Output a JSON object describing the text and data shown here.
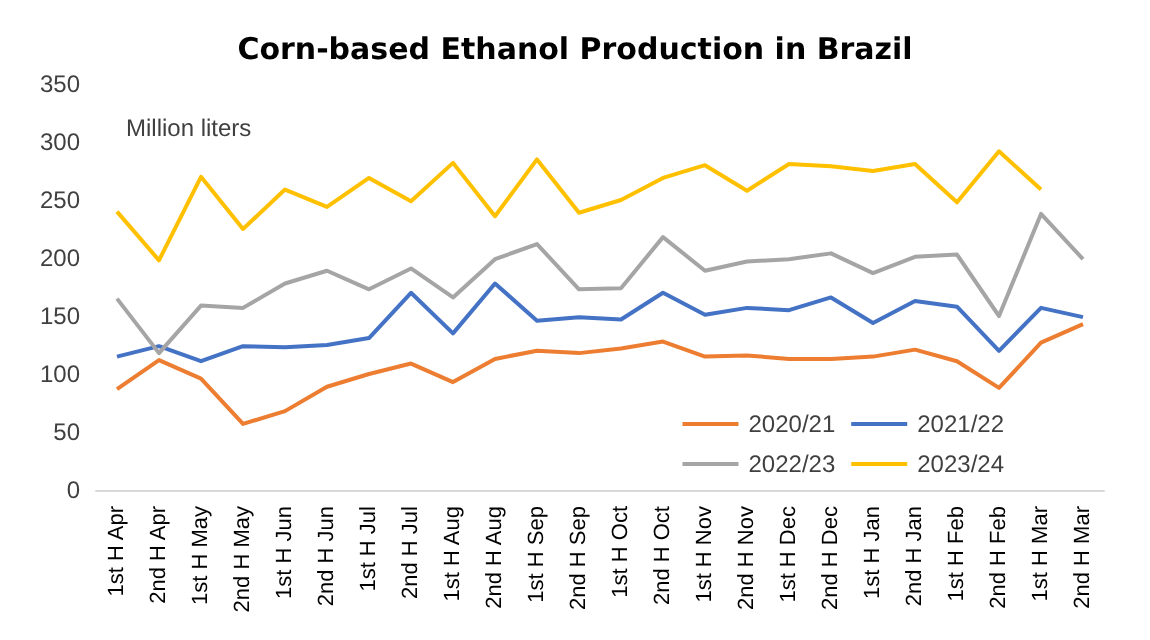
{
  "chart_data": {
    "type": "line",
    "title": "Corn-based Ethanol Production in Brazil",
    "ylabel": "Million liters",
    "categories": [
      "1st H Apr",
      "2nd H Apr",
      "1st H May",
      "2nd H May",
      "1st H Jun",
      "2nd H Jun",
      "1st H Jul",
      "2nd H Jul",
      "1st H Aug",
      "2nd H Aug",
      "1st H Sep",
      "2nd H Sep",
      "1st H Oct",
      "2nd H Oct",
      "1st H Nov",
      "2nd H Nov",
      "1st H Dec",
      "2nd H Dec",
      "1st H Jan",
      "2nd H Jan",
      "1st H Feb",
      "2nd H Feb",
      "1st H Mar",
      "2nd H Mar"
    ],
    "series": [
      {
        "name": "2020/21",
        "color": "#ed7d31",
        "values": [
          87,
          112,
          96,
          57,
          68,
          89,
          100,
          109,
          93,
          113,
          120,
          118,
          122,
          128,
          115,
          116,
          113,
          113,
          115,
          121,
          111,
          88,
          127,
          143
        ]
      },
      {
        "name": "2021/22",
        "color": "#4472c4",
        "values": [
          115,
          124,
          111,
          124,
          123,
          125,
          131,
          170,
          135,
          178,
          146,
          149,
          147,
          170,
          151,
          157,
          155,
          166,
          144,
          163,
          158,
          120,
          157,
          149
        ]
      },
      {
        "name": "2022/23",
        "color": "#a5a5a5",
        "values": [
          165,
          118,
          159,
          157,
          178,
          189,
          173,
          191,
          166,
          199,
          212,
          173,
          174,
          218,
          189,
          197,
          199,
          204,
          187,
          201,
          203,
          150,
          238,
          199
        ]
      },
      {
        "name": "2023/24",
        "color": "#ffc000",
        "values": [
          240,
          198,
          270,
          225,
          259,
          244,
          269,
          249,
          282,
          236,
          285,
          239,
          250,
          269,
          280,
          258,
          281,
          279,
          275,
          281,
          248,
          292,
          259,
          null
        ]
      }
    ],
    "ylim": [
      0,
      350
    ],
    "yticks": [
      0,
      50,
      100,
      150,
      200,
      250,
      300,
      350
    ],
    "grid": false,
    "legend": "bottom right",
    "marker": "none",
    "line_style": "solid"
  }
}
